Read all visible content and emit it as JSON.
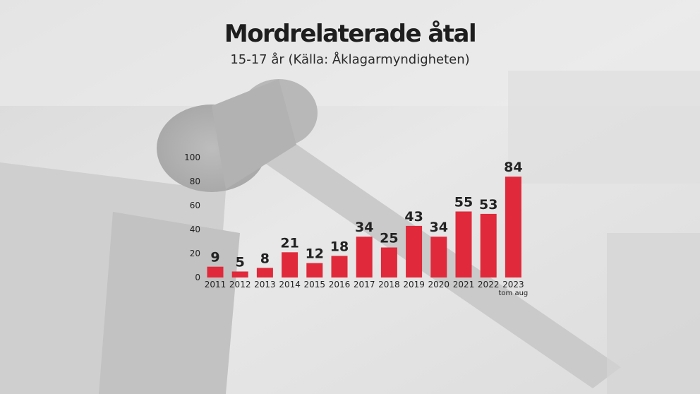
{
  "title": "Mordrelaterade åtal",
  "subtitle": "15-17 år (Källa: Åklagarmyndigheten)",
  "colors": {
    "bar": "#e0293a",
    "text": "#222222",
    "background": "#e4e4e4"
  },
  "background_image": "judge-gavel-on-law-book-photo",
  "chart_data": {
    "type": "bar",
    "title": "Mordrelaterade åtal",
    "subtitle": "15-17 år (Källa: Åklagarmyndigheten)",
    "xlabel": "",
    "ylabel": "",
    "categories": [
      "2011",
      "2012",
      "2013",
      "2014",
      "2015",
      "2016",
      "2017",
      "2018",
      "2019",
      "2020",
      "2021",
      "2022",
      "2023"
    ],
    "category_notes": [
      "",
      "",
      "",
      "",
      "",
      "",
      "",
      "",
      "",
      "",
      "",
      "",
      "tom aug"
    ],
    "values": [
      9,
      5,
      8,
      21,
      12,
      18,
      34,
      25,
      43,
      34,
      55,
      53,
      84
    ],
    "yticks": [
      0,
      20,
      40,
      60,
      80,
      100
    ],
    "ylim": [
      0,
      100
    ],
    "grid": false,
    "data_labels": true
  }
}
